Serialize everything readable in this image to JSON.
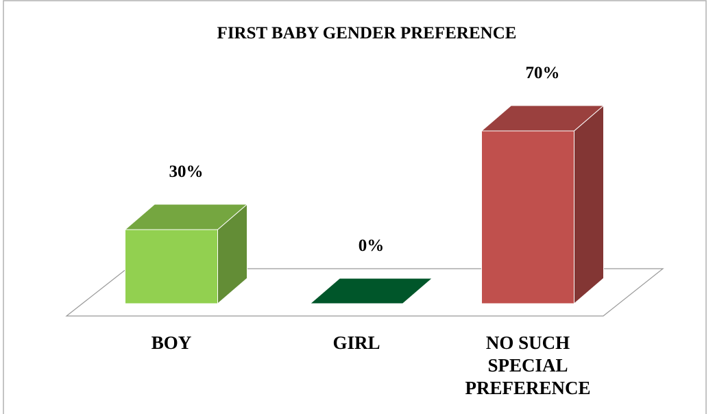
{
  "chart_data": {
    "type": "bar3d",
    "title": "FIRST BABY GENDER PREFERENCE",
    "categories": [
      "BOY",
      "GIRL",
      "NO SUCH SPECIAL PREFERENCE"
    ],
    "values": [
      30,
      0,
      70
    ],
    "value_labels": [
      "30%",
      "0%",
      "70%"
    ],
    "colors": [
      "#92d050",
      "#00562a",
      "#c0504d"
    ]
  }
}
